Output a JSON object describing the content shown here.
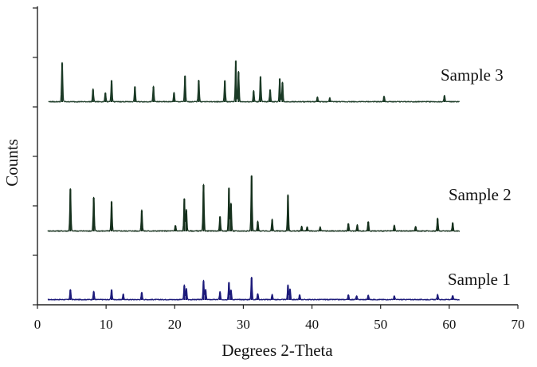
{
  "chart_data": {
    "type": "line",
    "title": "",
    "xlabel": "Degrees 2-Theta",
    "ylabel": "Counts",
    "xlim": [
      0,
      70
    ],
    "x_ticks": [
      0,
      10,
      20,
      30,
      40,
      50,
      60,
      70
    ],
    "x_tick_labels": [
      "0",
      "10",
      "20",
      "30",
      "40",
      "50",
      "60",
      "70"
    ],
    "y_tick_count": 7,
    "grid": false,
    "legend": "none",
    "series": [
      {
        "name": "Sample 1",
        "color": "#1c1a7a",
        "baseline": 0.0,
        "peaks": [
          [
            4.8,
            3.2
          ],
          [
            8.2,
            2.6
          ],
          [
            10.8,
            3.2
          ],
          [
            12.5,
            1.7
          ],
          [
            15.2,
            2.3
          ],
          [
            21.4,
            4.5
          ],
          [
            21.7,
            3.4
          ],
          [
            24.2,
            5.9
          ],
          [
            24.5,
            3.1
          ],
          [
            26.6,
            2.4
          ],
          [
            27.9,
            5.5
          ],
          [
            28.2,
            3.0
          ],
          [
            31.2,
            7.0
          ],
          [
            32.1,
            1.9
          ],
          [
            34.2,
            1.6
          ],
          [
            36.5,
            4.6
          ],
          [
            36.8,
            3.4
          ],
          [
            38.2,
            1.5
          ],
          [
            45.3,
            1.5
          ],
          [
            46.5,
            1.2
          ],
          [
            48.2,
            1.4
          ],
          [
            52.0,
            1.2
          ],
          [
            58.3,
            1.6
          ],
          [
            60.5,
            1.3
          ]
        ],
        "note_start_x": 1.5
      },
      {
        "name": "Sample 2",
        "color": "#15301c",
        "baseline": 0.0,
        "peaks": [
          [
            4.8,
            13.2
          ],
          [
            8.2,
            10.5
          ],
          [
            10.8,
            9.2
          ],
          [
            15.2,
            6.5
          ],
          [
            20.1,
            1.8
          ],
          [
            21.4,
            10.2
          ],
          [
            21.7,
            6.6
          ],
          [
            24.2,
            14.5
          ],
          [
            26.6,
            4.6
          ],
          [
            27.9,
            13.5
          ],
          [
            28.2,
            8.6
          ],
          [
            31.2,
            17.4
          ],
          [
            32.1,
            3.0
          ],
          [
            34.2,
            3.6
          ],
          [
            36.5,
            11.3
          ],
          [
            38.5,
            1.5
          ],
          [
            39.3,
            1.3
          ],
          [
            41.2,
            1.2
          ],
          [
            45.3,
            2.4
          ],
          [
            46.6,
            1.9
          ],
          [
            48.2,
            3.0
          ],
          [
            52.0,
            1.8
          ],
          [
            55.1,
            1.5
          ],
          [
            58.3,
            4.0
          ],
          [
            60.5,
            2.6
          ]
        ],
        "note_start_x": 1.5
      },
      {
        "name": "Sample 3",
        "color": "#1b3a26",
        "baseline": 0.0,
        "peaks": [
          [
            3.6,
            12.2
          ],
          [
            8.1,
            3.9
          ],
          [
            9.9,
            2.9
          ],
          [
            10.8,
            6.7
          ],
          [
            14.2,
            4.8
          ],
          [
            16.9,
            4.8
          ],
          [
            19.9,
            2.9
          ],
          [
            21.5,
            8.2
          ],
          [
            23.5,
            6.8
          ],
          [
            27.3,
            6.7
          ],
          [
            28.9,
            12.9
          ],
          [
            29.3,
            9.4
          ],
          [
            31.5,
            3.4
          ],
          [
            32.5,
            7.9
          ],
          [
            33.9,
            3.8
          ],
          [
            35.3,
            7.3
          ],
          [
            35.7,
            6.1
          ],
          [
            40.8,
            1.5
          ],
          [
            42.6,
            1.2
          ],
          [
            50.5,
            1.8
          ],
          [
            59.3,
            1.9
          ]
        ],
        "note_start_x": 1.6
      }
    ]
  }
}
